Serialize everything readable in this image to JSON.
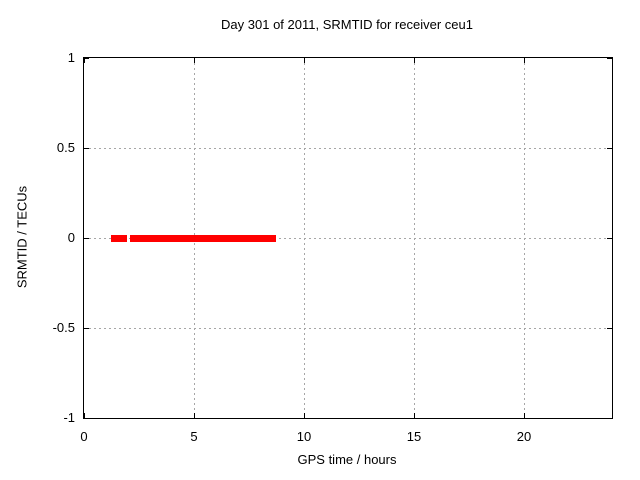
{
  "chart_data": {
    "type": "line",
    "title": "Day 301 of 2011, SRMTID for receiver ceu1",
    "xlabel": "GPS time / hours",
    "ylabel": "SRMTID / TECUs",
    "xlim": [
      0,
      24
    ],
    "ylim": [
      -1,
      1
    ],
    "x_ticks": [
      0,
      5,
      10,
      15,
      20
    ],
    "x_tick_labels": [
      "0",
      "5",
      "10",
      "15",
      "20"
    ],
    "y_ticks": [
      -1,
      -0.5,
      0,
      0.5,
      1
    ],
    "y_tick_labels": [
      "-1",
      "-0.5",
      "0",
      "0.5",
      "1"
    ],
    "x_grid": [
      5,
      10,
      15,
      20
    ],
    "y_grid": [
      -0.5,
      0,
      0.5
    ],
    "grid": true,
    "legend": "none",
    "series": [
      {
        "name": "SRMTID",
        "color": "#ff0000",
        "style": "thick horizontal line at constant value",
        "thickness_px": 7,
        "segments": [
          {
            "x_start": 1.23,
            "x_end": 1.95,
            "y": 0
          },
          {
            "x_start": 2.09,
            "x_end": 8.73,
            "y": 0
          }
        ]
      }
    ]
  },
  "colors": {
    "background": "#ffffff",
    "axis": "#000000",
    "text": "#000000",
    "grid": "#a6a6a6",
    "series": "#ff0000"
  }
}
